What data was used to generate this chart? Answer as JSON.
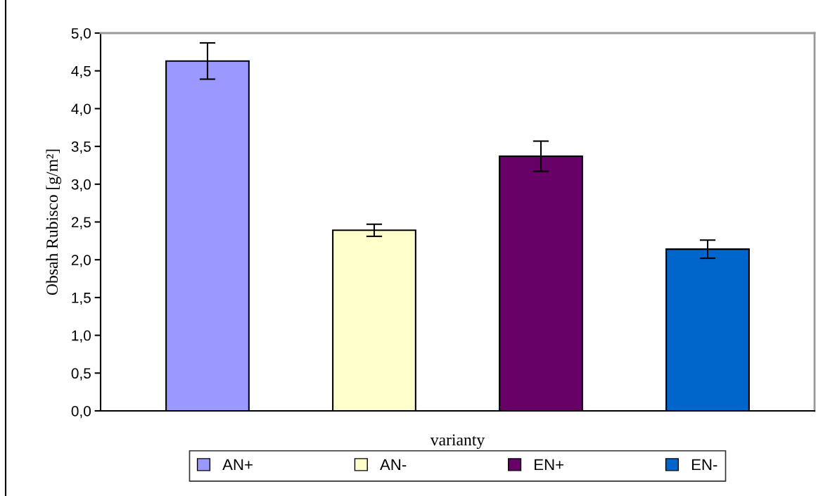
{
  "chart_data": {
    "type": "bar",
    "xlabel": "varianty",
    "ylabel": "Obsah Rubisco [g/m²]",
    "categories": [
      null
    ],
    "series": [
      {
        "name": "AN+",
        "color": "#9999ff",
        "values": [
          4.63
        ],
        "errors": [
          0.24
        ]
      },
      {
        "name": "AN-",
        "color": "#ffffcc",
        "values": [
          2.39
        ],
        "errors": [
          0.08
        ]
      },
      {
        "name": "EN+",
        "color": "#660066",
        "values": [
          3.37
        ],
        "errors": [
          0.2
        ]
      },
      {
        "name": "EN-",
        "color": "#0066cc",
        "values": [
          2.14
        ],
        "errors": [
          0.12
        ]
      }
    ],
    "ylim": [
      0,
      5
    ],
    "yticks": [
      {
        "value": 0,
        "label": "0,0"
      },
      {
        "value": 0.5,
        "label": "0,5"
      },
      {
        "value": 1,
        "label": "1,0"
      },
      {
        "value": 1.5,
        "label": "1,5"
      },
      {
        "value": 2,
        "label": "2,0"
      },
      {
        "value": 2.5,
        "label": "2,5"
      },
      {
        "value": 3,
        "label": "3,0"
      },
      {
        "value": 3.5,
        "label": "3,5"
      },
      {
        "value": 4,
        "label": "4,0"
      },
      {
        "value": 4.5,
        "label": "4,5"
      },
      {
        "value": 5,
        "label": "5,0"
      }
    ],
    "grid": false,
    "legend": "bottom"
  }
}
